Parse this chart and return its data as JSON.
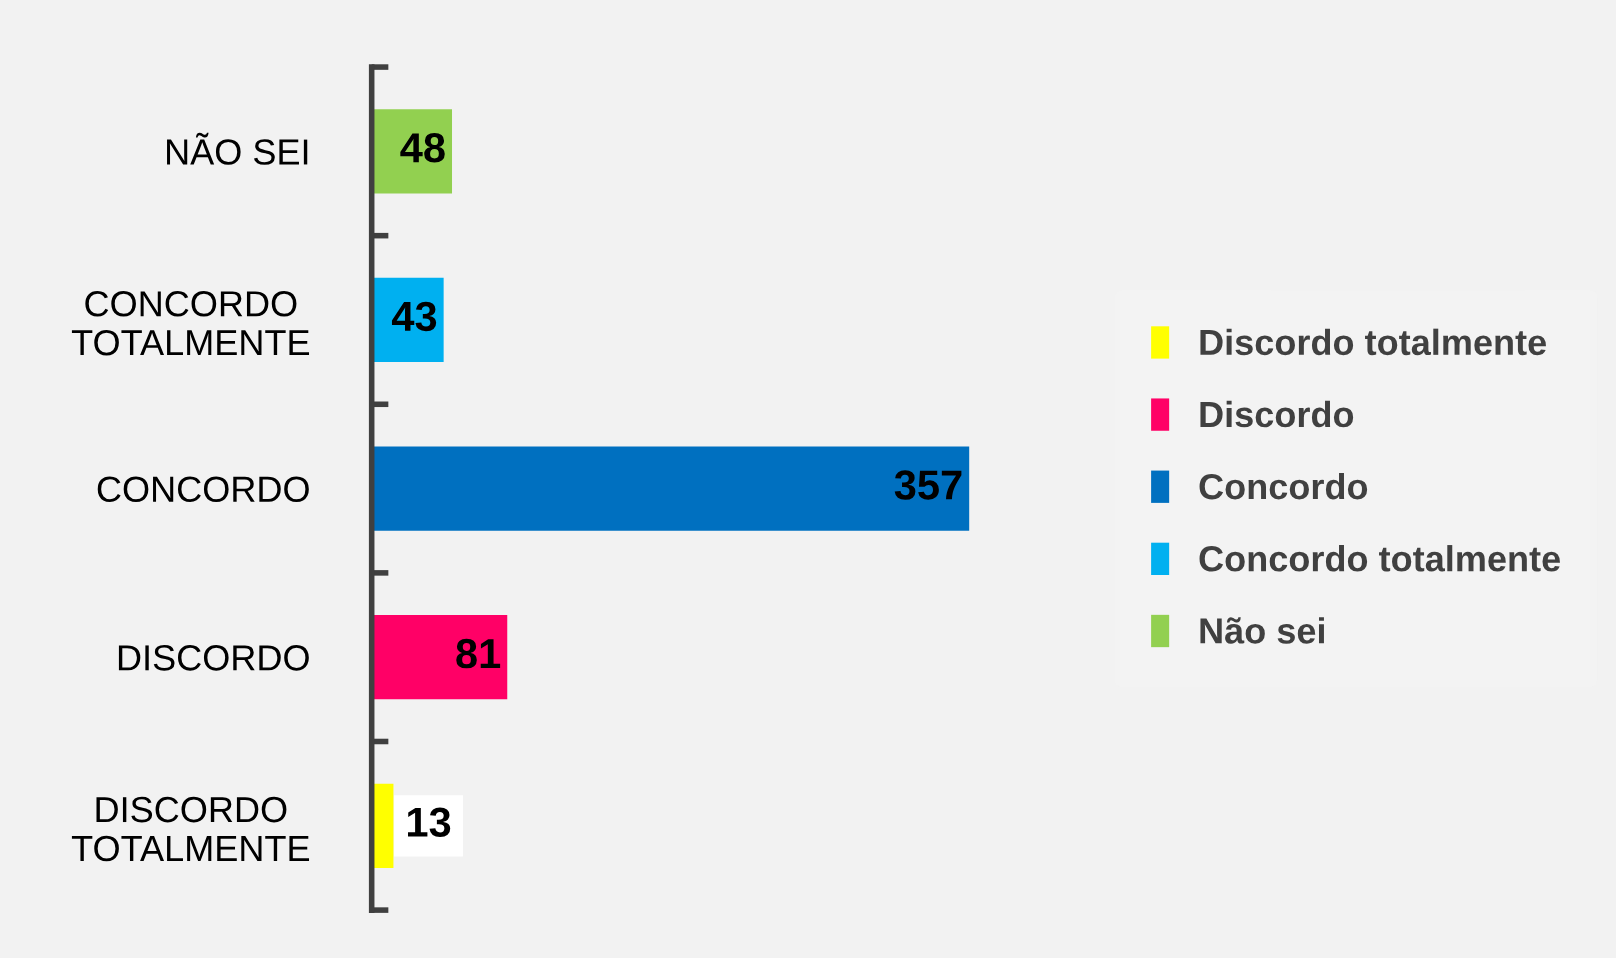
{
  "chart_data": {
    "type": "bar",
    "orientation": "horizontal",
    "data_labels": true,
    "legend": "right",
    "grid": false,
    "categories": [
      "NÃO SEI",
      "CONCORDO\nTOTALMENTE",
      "CONCORDO",
      "DISCORDO",
      "DISCORDO\nTOTALMENTE"
    ],
    "series": [
      {
        "name": "Discordo totalmente",
        "color": "#ffff00",
        "values": [
          null,
          null,
          null,
          null,
          13
        ]
      },
      {
        "name": "Discordo",
        "color": "#ff0066",
        "values": [
          null,
          null,
          null,
          81,
          null
        ]
      },
      {
        "name": "Concordo",
        "color": "#0070c0",
        "values": [
          null,
          null,
          357,
          null,
          null
        ]
      },
      {
        "name": "Concordo totalmente",
        "color": "#00b0f0",
        "values": [
          null,
          43,
          null,
          null,
          null
        ]
      },
      {
        "name": "Não sei",
        "color": "#92d050",
        "values": [
          48,
          null,
          null,
          null,
          null
        ]
      }
    ]
  }
}
